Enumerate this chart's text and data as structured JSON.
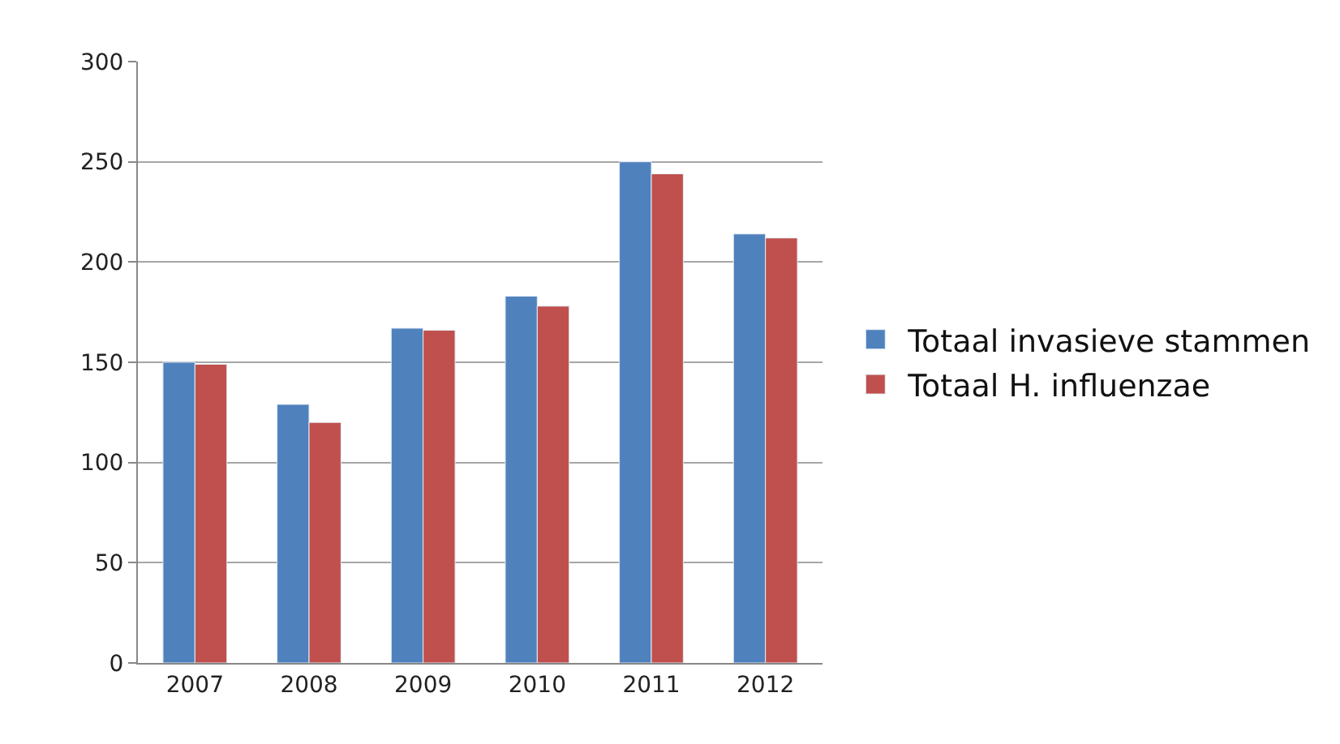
{
  "chart_data": {
    "type": "bar",
    "categories": [
      "2007",
      "2008",
      "2009",
      "2010",
      "2011",
      "2012"
    ],
    "series": [
      {
        "name": "Totaal invasieve stammen",
        "color": "#4f81bd",
        "values": [
          150,
          129,
          167,
          183,
          250,
          214
        ]
      },
      {
        "name": "Totaal H. influenzae",
        "color": "#c0504d",
        "values": [
          149,
          120,
          166,
          178,
          244,
          212
        ]
      }
    ],
    "ylim": [
      0,
      300
    ],
    "yticks": [
      0,
      50,
      100,
      150,
      200,
      250,
      300
    ],
    "grid": "y",
    "legend": "right"
  }
}
